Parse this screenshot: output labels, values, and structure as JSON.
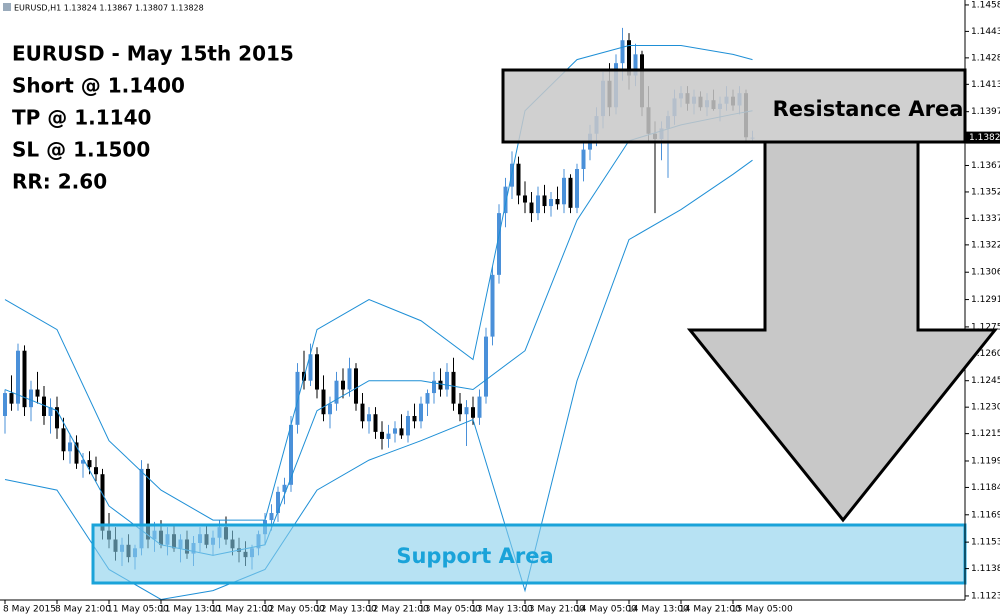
{
  "chart_data": {
    "type": "candlestick",
    "header": "EURUSD,H1  1.13824 1.13867 1.13807 1.13828",
    "annotations": [
      "EURUSD - May 15th 2015",
      "Short @ 1.1400",
      "TP @ 1.1140",
      "SL @ 1.1500",
      "RR: 2.60"
    ],
    "zone_labels": [
      "Resistance Area",
      "Support Area"
    ],
    "bull_color": "#4a90d9",
    "bear_color": "#000000",
    "band_color": "#1e8fd6",
    "ylim": [
      1.11207,
      1.14608
    ],
    "yticks": [
      {
        "value": 1.1458,
        "label": "1.14580"
      },
      {
        "value": 1.1443,
        "label": "1.14430"
      },
      {
        "value": 1.1428,
        "label": "1.14280"
      },
      {
        "value": 1.1413,
        "label": "1.14130"
      },
      1.13975,
      {
        "value": 1.1367,
        "label": "1.13670"
      },
      {
        "value": 1.1352,
        "label": "1.13520"
      },
      {
        "value": 1.1337,
        "label": "1.13370"
      },
      {
        "value": 1.1322,
        "label": "1.13220"
      },
      1.13065,
      {
        "value": 1.1291,
        "label": "1.12910"
      },
      1.12755,
      1.12605,
      {
        "value": 1.1245,
        "label": "1.12450"
      },
      {
        "value": 1.123,
        "label": "1.12300"
      },
      {
        "value": 1.1215,
        "label": "1.12150"
      },
      1.11995,
      1.11845,
      {
        "value": 1.1169,
        "label": "1.11690"
      },
      1.11535,
      1.11385,
      {
        "value": 1.1123,
        "label": "1.11230"
      }
    ],
    "xticks": [
      {
        "value": 0,
        "label": "8 May 2015"
      },
      {
        "value": 8,
        "label": "8 May 21:00"
      },
      {
        "value": 16,
        "label": "11 May 05:00"
      },
      {
        "value": 24,
        "label": "11 May 13:00"
      },
      {
        "value": 32,
        "label": "11 May 21:00"
      },
      {
        "value": 40,
        "label": "12 May 05:00"
      },
      {
        "value": 48,
        "label": "12 May 13:00"
      },
      {
        "value": 56,
        "label": "12 May 21:00"
      },
      {
        "value": 64,
        "label": "13 May 05:00"
      },
      {
        "value": 72,
        "label": "13 May 13:00"
      },
      {
        "value": 80,
        "label": "13 May 21:00"
      },
      {
        "value": 88,
        "label": "14 May 05:00"
      },
      {
        "value": 96,
        "label": "14 May 13:00"
      },
      {
        "value": 104,
        "label": "14 May 21:00"
      },
      {
        "value": 112,
        "label": "15 May 05:00"
      }
    ],
    "ohlc": [
      [
        1.1225,
        1.124,
        1.1215,
        1.1238
      ],
      [
        1.1238,
        1.1248,
        1.1228,
        1.1232
      ],
      [
        1.1232,
        1.1266,
        1.1228,
        1.1262
      ],
      [
        1.1262,
        1.1265,
        1.1225,
        1.123
      ],
      [
        1.123,
        1.1245,
        1.1222,
        1.124
      ],
      [
        1.124,
        1.125,
        1.1232,
        1.1236
      ],
      [
        1.1236,
        1.1242,
        1.122,
        1.1225
      ],
      [
        1.1225,
        1.1235,
        1.1215,
        1.123
      ],
      [
        1.123,
        1.1236,
        1.1212,
        1.1218
      ],
      [
        1.1218,
        1.1224,
        1.12,
        1.1205
      ],
      [
        1.1205,
        1.1215,
        1.1198,
        1.121
      ],
      [
        1.121,
        1.1214,
        1.1195,
        1.1198
      ],
      [
        1.1198,
        1.1204,
        1.119,
        1.12
      ],
      [
        1.12,
        1.1205,
        1.1192,
        1.1196
      ],
      [
        1.1196,
        1.1202,
        1.1188,
        1.1192
      ],
      [
        1.1192,
        1.1195,
        1.1155,
        1.116
      ],
      [
        1.116,
        1.117,
        1.115,
        1.1155
      ],
      [
        1.1155,
        1.1162,
        1.1143,
        1.1148
      ],
      [
        1.1148,
        1.1156,
        1.114,
        1.1152
      ],
      [
        1.1152,
        1.1158,
        1.1142,
        1.1145
      ],
      [
        1.1145,
        1.1152,
        1.1138,
        1.115
      ],
      [
        1.115,
        1.12,
        1.1146,
        1.1195
      ],
      [
        1.1195,
        1.1198,
        1.115,
        1.1155
      ],
      [
        1.1155,
        1.1165,
        1.1148,
        1.116
      ],
      [
        1.116,
        1.1166,
        1.115,
        1.1152
      ],
      [
        1.1152,
        1.1162,
        1.1146,
        1.1158
      ],
      [
        1.1158,
        1.1164,
        1.1148,
        1.115
      ],
      [
        1.115,
        1.1158,
        1.1142,
        1.1155
      ],
      [
        1.1155,
        1.116,
        1.1144,
        1.1147
      ],
      [
        1.1147,
        1.1157,
        1.114,
        1.1153
      ],
      [
        1.1153,
        1.1162,
        1.1148,
        1.1158
      ],
      [
        1.1158,
        1.1164,
        1.115,
        1.1152
      ],
      [
        1.1152,
        1.116,
        1.1146,
        1.1156
      ],
      [
        1.1156,
        1.1166,
        1.115,
        1.1162
      ],
      [
        1.1162,
        1.1168,
        1.1152,
        1.1155
      ],
      [
        1.1155,
        1.116,
        1.1146,
        1.115
      ],
      [
        1.115,
        1.1156,
        1.1142,
        1.1148
      ],
      [
        1.1148,
        1.1154,
        1.114,
        1.1145
      ],
      [
        1.1145,
        1.1152,
        1.1138,
        1.115
      ],
      [
        1.115,
        1.116,
        1.1146,
        1.1158
      ],
      [
        1.1158,
        1.117,
        1.1152,
        1.1166
      ],
      [
        1.1166,
        1.1175,
        1.116,
        1.117
      ],
      [
        1.117,
        1.1185,
        1.1165,
        1.1182
      ],
      [
        1.1182,
        1.119,
        1.1175,
        1.1186
      ],
      [
        1.1186,
        1.1225,
        1.1182,
        1.122
      ],
      [
        1.122,
        1.1255,
        1.1215,
        1.125
      ],
      [
        1.125,
        1.1262,
        1.124,
        1.1245
      ],
      [
        1.1245,
        1.1266,
        1.1242,
        1.126
      ],
      [
        1.126,
        1.1264,
        1.1235,
        1.124
      ],
      [
        1.124,
        1.1248,
        1.1222,
        1.1226
      ],
      [
        1.1226,
        1.1236,
        1.1218,
        1.1232
      ],
      [
        1.1232,
        1.125,
        1.1228,
        1.1245
      ],
      [
        1.1245,
        1.1252,
        1.1235,
        1.124
      ],
      [
        1.124,
        1.1258,
        1.1236,
        1.1252
      ],
      [
        1.1252,
        1.1255,
        1.1228,
        1.1232
      ],
      [
        1.1232,
        1.1238,
        1.1218,
        1.1222
      ],
      [
        1.1222,
        1.123,
        1.1215,
        1.1226
      ],
      [
        1.1226,
        1.123,
        1.1212,
        1.1216
      ],
      [
        1.1216,
        1.1222,
        1.1206,
        1.1212
      ],
      [
        1.1212,
        1.122,
        1.1207,
        1.1215
      ],
      [
        1.1215,
        1.1222,
        1.121,
        1.1218
      ],
      [
        1.1218,
        1.1226,
        1.1212,
        1.1214
      ],
      [
        1.1214,
        1.1228,
        1.121,
        1.1225
      ],
      [
        1.1225,
        1.1232,
        1.1218,
        1.1222
      ],
      [
        1.1222,
        1.1236,
        1.1218,
        1.1232
      ],
      [
        1.1232,
        1.124,
        1.1225,
        1.1238
      ],
      [
        1.1238,
        1.125,
        1.1232,
        1.1245
      ],
      [
        1.1245,
        1.1252,
        1.1236,
        1.124
      ],
      [
        1.124,
        1.1255,
        1.1236,
        1.125
      ],
      [
        1.125,
        1.1258,
        1.1228,
        1.1232
      ],
      [
        1.1232,
        1.1238,
        1.1222,
        1.1226
      ],
      [
        1.1226,
        1.1234,
        1.1208,
        1.123
      ],
      [
        1.123,
        1.1236,
        1.122,
        1.1224
      ],
      [
        1.1224,
        1.124,
        1.122,
        1.1236
      ],
      [
        1.1236,
        1.1275,
        1.1232,
        1.127
      ],
      [
        1.127,
        1.131,
        1.1265,
        1.1305
      ],
      [
        1.1305,
        1.1345,
        1.13,
        1.134
      ],
      [
        1.134,
        1.136,
        1.1332,
        1.1355
      ],
      [
        1.1355,
        1.1375,
        1.1348,
        1.1368
      ],
      [
        1.1368,
        1.1372,
        1.1345,
        1.135
      ],
      [
        1.135,
        1.1358,
        1.134,
        1.1346
      ],
      [
        1.1346,
        1.1352,
        1.1335,
        1.134
      ],
      [
        1.134,
        1.1355,
        1.1336,
        1.135
      ],
      [
        1.135,
        1.1356,
        1.134,
        1.1344
      ],
      [
        1.1344,
        1.1352,
        1.1338,
        1.1348
      ],
      [
        1.1348,
        1.1355,
        1.1342,
        1.1345
      ],
      [
        1.1345,
        1.1365,
        1.134,
        1.136
      ],
      [
        1.136,
        1.1362,
        1.134,
        1.1343
      ],
      [
        1.1343,
        1.1368,
        1.134,
        1.1365
      ],
      [
        1.1365,
        1.138,
        1.1358,
        1.1376
      ],
      [
        1.1376,
        1.139,
        1.137,
        1.1385
      ],
      [
        1.1385,
        1.14,
        1.1378,
        1.1395
      ],
      [
        1.1395,
        1.142,
        1.1388,
        1.1415
      ],
      [
        1.1415,
        1.1425,
        1.1395,
        1.14
      ],
      [
        1.14,
        1.143,
        1.1396,
        1.1425
      ],
      [
        1.1425,
        1.1445,
        1.1415,
        1.1438
      ],
      [
        1.1438,
        1.1442,
        1.141,
        1.1418
      ],
      [
        1.1418,
        1.1436,
        1.1412,
        1.143
      ],
      [
        1.143,
        1.1432,
        1.1395,
        1.14
      ],
      [
        1.14,
        1.1412,
        1.138,
        1.1385
      ],
      [
        1.1385,
        1.1392,
        1.134,
        1.1382
      ],
      [
        1.1382,
        1.1392,
        1.137,
        1.1388
      ],
      [
        1.1388,
        1.1398,
        1.136,
        1.1395
      ],
      [
        1.1395,
        1.141,
        1.139,
        1.1405
      ],
      [
        1.1405,
        1.1412,
        1.14,
        1.1408
      ],
      [
        1.1408,
        1.1412,
        1.1398,
        1.1402
      ],
      [
        1.1402,
        1.141,
        1.1396,
        1.1406
      ],
      [
        1.1406,
        1.1409,
        1.1398,
        1.14
      ],
      [
        1.14,
        1.1408,
        1.1395,
        1.1404
      ],
      [
        1.1404,
        1.141,
        1.1398,
        1.1399
      ],
      [
        1.1399,
        1.1406,
        1.1392,
        1.1402
      ],
      [
        1.1402,
        1.1412,
        1.1398,
        1.1406
      ],
      [
        1.1406,
        1.141,
        1.1398,
        1.1401
      ],
      [
        1.1401,
        1.1412,
        1.1396,
        1.1408
      ],
      [
        1.1408,
        1.141,
        1.138,
        1.1383
      ],
      [
        1.13824,
        1.13867,
        1.13807,
        1.13828
      ]
    ],
    "band_x": [
      0,
      8,
      16,
      24,
      32,
      40,
      48,
      56,
      64,
      72,
      80,
      88,
      96,
      104,
      112,
      115
    ],
    "bands": [
      [
        1.1291,
        1.1274,
        1.1211,
        1.1183,
        1.1166,
        1.1166,
        1.1274,
        1.1291,
        1.1279,
        1.1257,
        1.1398,
        1.1427,
        1.1435,
        1.1435,
        1.143,
        1.1427
      ],
      [
        1.124,
        1.1228,
        1.1174,
        1.1152,
        1.1146,
        1.1152,
        1.1228,
        1.1245,
        1.1245,
        1.124,
        1.1262,
        1.1336,
        1.1381,
        1.139,
        1.1396,
        1.1398
      ],
      [
        1.1189,
        1.1183,
        1.1138,
        1.1121,
        1.1126,
        1.1138,
        1.1183,
        1.12,
        1.1211,
        1.1223,
        1.1126,
        1.1245,
        1.1325,
        1.1342,
        1.1362,
        1.137
      ]
    ]
  }
}
